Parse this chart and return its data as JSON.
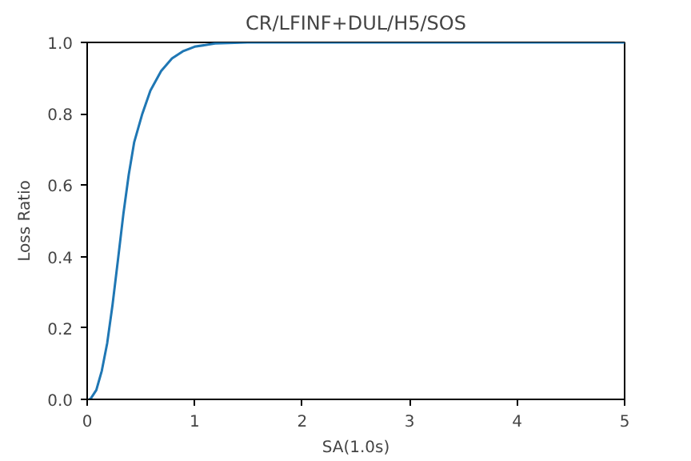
{
  "chart_data": {
    "type": "line",
    "title": "CR/LFINF+DUL/H5/SOS",
    "xlabel": "SA(1.0s)",
    "ylabel": "Loss Ratio",
    "x": [
      0.02,
      0.035,
      0.085,
      0.136,
      0.186,
      0.236,
      0.286,
      0.337,
      0.387,
      0.437,
      0.513,
      0.588,
      0.688,
      0.789,
      0.889,
      1.0,
      1.19,
      1.49,
      2.0,
      3.0,
      4.0,
      5.0
    ],
    "series": [
      {
        "color": "#1f77b4",
        "values": [
          0,
          0.003,
          0.026,
          0.08,
          0.157,
          0.265,
          0.39,
          0.52,
          0.63,
          0.72,
          0.8,
          0.865,
          0.92,
          0.955,
          0.975,
          0.988,
          0.997,
          1.0,
          1.0,
          1.0,
          1.0,
          1.0
        ]
      }
    ],
    "xlim": [
      0,
      5
    ],
    "ylim": [
      0,
      1
    ],
    "xticks": [
      0,
      1,
      2,
      3,
      4,
      5
    ],
    "yticks": [
      {
        "value": 0,
        "label": "0.0"
      },
      {
        "value": 0.2,
        "label": "0.2"
      },
      {
        "value": 0.4,
        "label": "0.4"
      },
      {
        "value": 0.6,
        "label": "0.6"
      },
      {
        "value": 0.8,
        "label": "0.8"
      },
      {
        "value": 1,
        "label": "1.0"
      }
    ],
    "grid": false
  }
}
